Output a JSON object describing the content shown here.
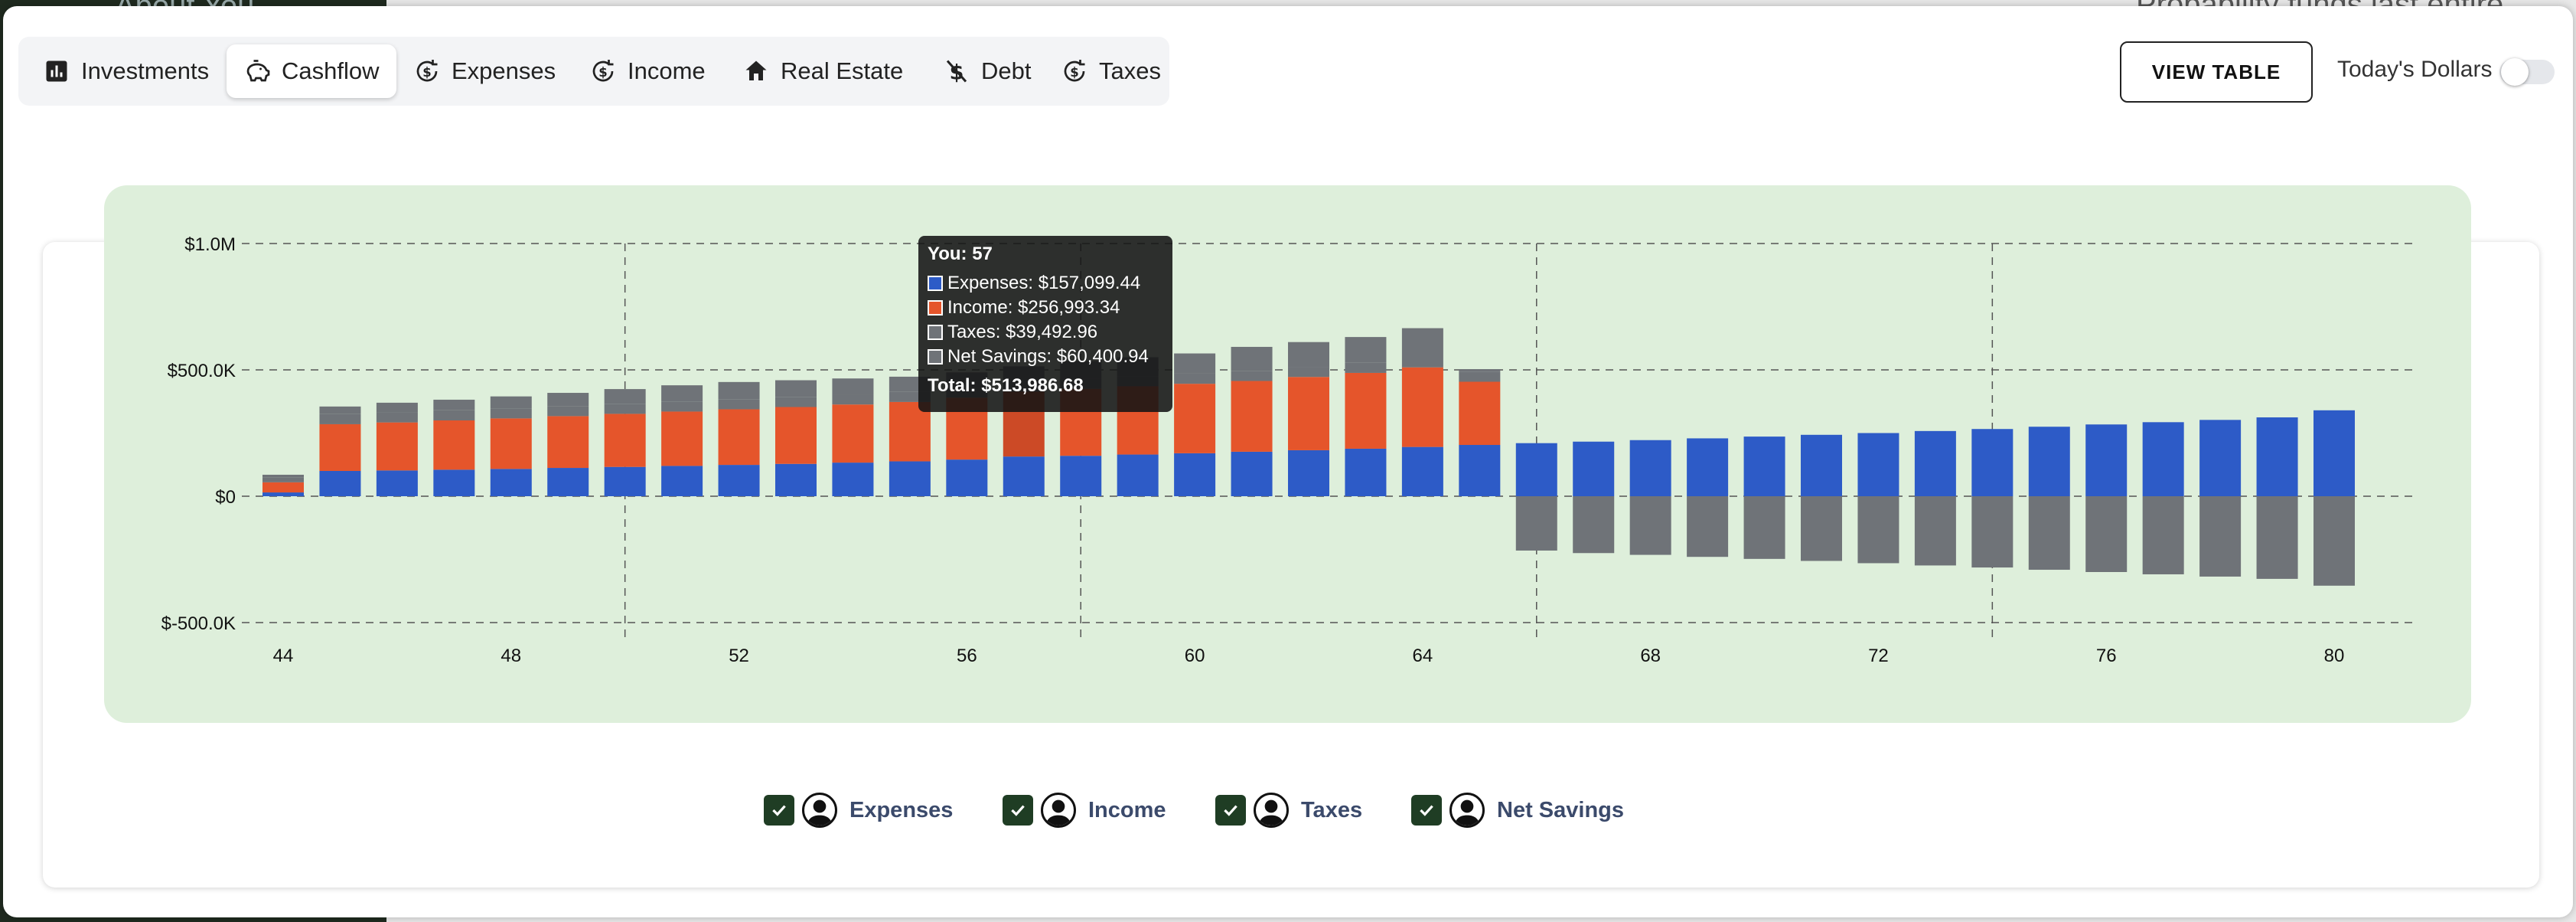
{
  "background": {
    "left_text": "About You",
    "right_text": "Probability funds last entire lifespan"
  },
  "tabs": [
    {
      "label": "Investments",
      "icon": "bar-chart-icon",
      "active": false
    },
    {
      "label": "Cashflow",
      "icon": "piggy-bank-icon",
      "active": true
    },
    {
      "label": "Expenses",
      "icon": "dollar-cycle-icon",
      "active": false
    },
    {
      "label": "Income",
      "icon": "dollar-cycle-icon",
      "active": false
    },
    {
      "label": "Real Estate",
      "icon": "home-icon",
      "active": false
    },
    {
      "label": "Debt",
      "icon": "money-off-icon",
      "active": false
    },
    {
      "label": "Taxes",
      "icon": "dollar-cycle-icon",
      "active": false
    }
  ],
  "header": {
    "view_table": "VIEW TABLE",
    "todays_dollars": "Today's Dollars",
    "todays_dollars_on": false
  },
  "colors": {
    "expenses": "#2d5bc7",
    "income": "#e5552b",
    "taxes": "#6f7378",
    "net_savings": "#6f7378",
    "chart_bg": "#deefdb",
    "check": "#1f3d24"
  },
  "tooltip": {
    "title": "You: 57",
    "rows": [
      {
        "label": "Expenses: $157,099.44",
        "color": "#2d5bc7"
      },
      {
        "label": "Income: $256,993.34",
        "color": "#e5552b"
      },
      {
        "label": "Taxes: $39,492.96",
        "color": "#6f7378"
      },
      {
        "label": "Net Savings: $60,400.94",
        "color": "#6f7378"
      }
    ],
    "total": "Total: $513,986.68"
  },
  "legend": [
    {
      "label": "Expenses",
      "checked": true
    },
    {
      "label": "Income",
      "checked": true
    },
    {
      "label": "Taxes",
      "checked": true
    },
    {
      "label": "Net Savings",
      "checked": true
    }
  ],
  "chart_data": {
    "type": "bar",
    "stacked": true,
    "x": [
      44,
      45,
      46,
      47,
      48,
      49,
      50,
      51,
      52,
      53,
      54,
      55,
      56,
      57,
      58,
      59,
      60,
      61,
      62,
      63,
      64,
      65,
      66,
      67,
      68,
      69,
      70,
      71,
      72,
      73,
      74,
      75,
      76,
      77,
      78,
      79,
      80
    ],
    "x_ticks": [
      44,
      48,
      52,
      56,
      60,
      64,
      68,
      72,
      76,
      80
    ],
    "y_ticks": [
      {
        "value": 1000000,
        "label": "$1.0M"
      },
      {
        "value": 500000,
        "label": "$500.0K"
      },
      {
        "value": 0,
        "label": "$0"
      },
      {
        "value": -500000,
        "label": "$-500.0K"
      }
    ],
    "ylim": [
      -500000,
      1000000
    ],
    "series": [
      {
        "name": "Expenses",
        "values": [
          15000,
          100000,
          102000,
          105000,
          108000,
          112000,
          116000,
          120000,
          124000,
          128000,
          133000,
          138000,
          145000,
          157099,
          160000,
          165000,
          170000,
          176000,
          182000,
          188000,
          195000,
          203000,
          210000,
          216000,
          222000,
          229000,
          236000,
          243000,
          250000,
          258000,
          266000,
          275000,
          284000,
          293000,
          302000,
          312000,
          340000
        ]
      },
      {
        "name": "Income",
        "values": [
          40000,
          185000,
          190000,
          195000,
          200000,
          205000,
          210000,
          215000,
          220000,
          225000,
          230000,
          235000,
          245000,
          256993,
          265000,
          270000,
          275000,
          280000,
          290000,
          300000,
          315000,
          250000,
          0,
          0,
          0,
          0,
          0,
          0,
          0,
          0,
          0,
          0,
          0,
          0,
          0,
          0,
          0
        ]
      },
      {
        "name": "Taxes",
        "values": [
          20000,
          40000,
          40000,
          40000,
          40000,
          40000,
          40000,
          40000,
          40000,
          40000,
          40000,
          40000,
          39500,
          39493,
          40000,
          40000,
          40000,
          40000,
          40000,
          40000,
          40000,
          40000,
          0,
          0,
          0,
          0,
          0,
          0,
          0,
          0,
          0,
          0,
          0,
          0,
          0,
          0,
          0
        ]
      },
      {
        "name": "Net Savings",
        "values": [
          10000,
          30000,
          38000,
          42000,
          47000,
          52000,
          58000,
          64000,
          68000,
          66000,
          63000,
          60000,
          60500,
          60401,
          70000,
          75000,
          80000,
          95000,
          98000,
          102000,
          115000,
          10000,
          -215000,
          -225000,
          -232000,
          -240000,
          -248000,
          -256000,
          -265000,
          -274000,
          -282000,
          -291000,
          -300000,
          -309000,
          -318000,
          -327000,
          -354000
        ]
      }
    ],
    "highlight_x": 57,
    "grid": true
  }
}
